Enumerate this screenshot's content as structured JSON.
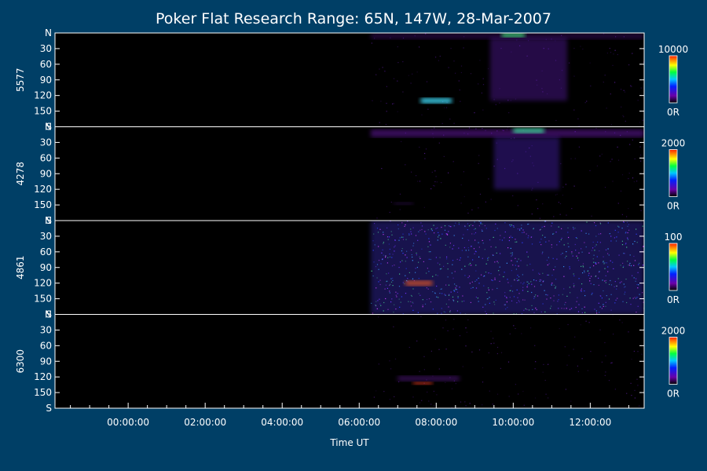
{
  "chart_data": {
    "type": "heatmap",
    "title": "Poker Flat Research Range: 65N, 147W, 28-Mar-2007",
    "xlabel": "Time UT",
    "x_range_hours": [
      -1.9,
      13.4
    ],
    "x_ticks": [
      {
        "value": 0,
        "label": "00:00:00"
      },
      {
        "value": 2,
        "label": "02:00:00"
      },
      {
        "value": 4,
        "label": "04:00:00"
      },
      {
        "value": 6,
        "label": "06:00:00"
      },
      {
        "value": 8,
        "label": "08:00:00"
      },
      {
        "value": 10,
        "label": "10:00:00"
      },
      {
        "value": 12,
        "label": "12:00:00"
      }
    ],
    "y_range": [
      0,
      180
    ],
    "y_ticks": [
      {
        "value": 0,
        "label": "N"
      },
      {
        "value": 30,
        "label": "30"
      },
      {
        "value": 60,
        "label": "60"
      },
      {
        "value": 90,
        "label": "90"
      },
      {
        "value": 120,
        "label": "120"
      },
      {
        "value": 150,
        "label": "150"
      },
      {
        "value": 180,
        "label": "S"
      }
    ],
    "data_start_hour": 6.3,
    "colorbar_min_label": "0R",
    "panels": [
      {
        "ylabel": "5577",
        "colorbar_max": "10000",
        "features": [
          {
            "t0": 6.3,
            "t1": 13.4,
            "y0": 0,
            "y1": 12,
            "intensity": 0.25,
            "color": "#7a1fd0"
          },
          {
            "t0": 9.4,
            "t1": 11.4,
            "y0": 10,
            "y1": 130,
            "intensity": 0.35,
            "color": "#6a20c8"
          },
          {
            "t0": 7.6,
            "t1": 8.4,
            "y0": 125,
            "y1": 135,
            "intensity": 0.9,
            "color": "#40e0ff"
          },
          {
            "t0": 9.7,
            "t1": 10.3,
            "y0": 0,
            "y1": 8,
            "intensity": 0.8,
            "color": "#40ff80"
          }
        ]
      },
      {
        "ylabel": "4278",
        "colorbar_max": "2000",
        "features": [
          {
            "t0": 6.3,
            "t1": 13.4,
            "y0": 5,
            "y1": 20,
            "intensity": 0.4,
            "color": "#8a20e0"
          },
          {
            "t0": 9.5,
            "t1": 11.2,
            "y0": 20,
            "y1": 120,
            "intensity": 0.35,
            "color": "#5a2be0"
          },
          {
            "t0": 10.0,
            "t1": 10.8,
            "y0": 3,
            "y1": 12,
            "intensity": 0.9,
            "color": "#40e0a0"
          },
          {
            "t0": 6.9,
            "t1": 7.4,
            "y0": 145,
            "y1": 150,
            "intensity": 0.3,
            "color": "#7020c0"
          }
        ]
      },
      {
        "ylabel": "4861",
        "colorbar_max": "100",
        "features": [
          {
            "t0": 6.3,
            "t1": 13.4,
            "y0": 0,
            "y1": 180,
            "intensity": 0.3,
            "color": "#5040ff"
          },
          {
            "t0": 7.2,
            "t1": 7.9,
            "y0": 115,
            "y1": 125,
            "intensity": 0.7,
            "color": "#ff6020"
          }
        ]
      },
      {
        "ylabel": "6300",
        "colorbar_max": "2000",
        "features": [
          {
            "t0": 7.0,
            "t1": 8.6,
            "y0": 118,
            "y1": 128,
            "intensity": 0.4,
            "color": "#7a20c0"
          },
          {
            "t0": 7.4,
            "t1": 7.9,
            "y0": 130,
            "y1": 135,
            "intensity": 0.9,
            "color": "#ff4020"
          }
        ]
      }
    ]
  }
}
